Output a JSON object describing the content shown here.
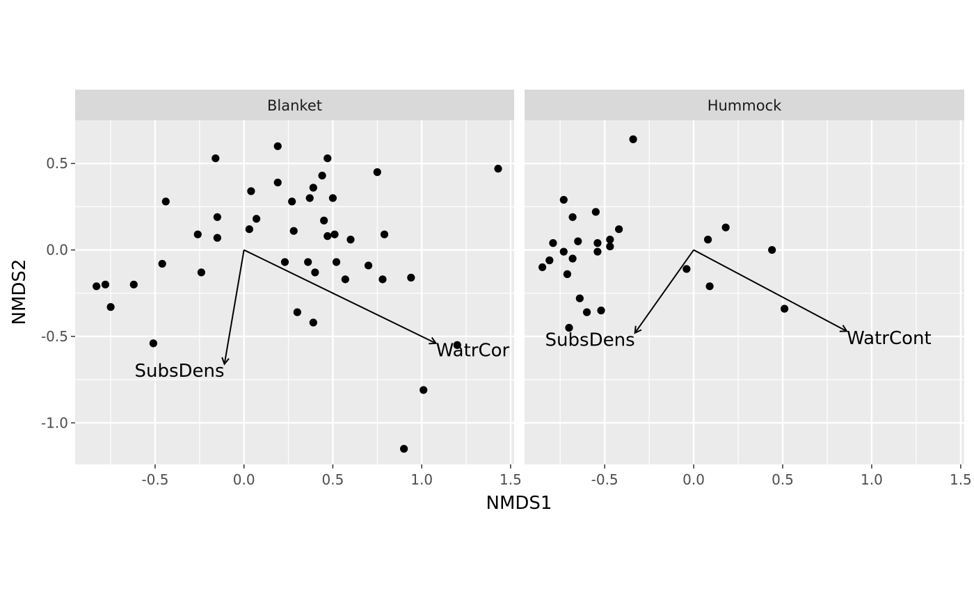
{
  "chart_data": {
    "type": "scatter",
    "xlabel": "NMDS1",
    "ylabel": "NMDS2",
    "xlim": [
      -0.95,
      1.52
    ],
    "ylim": [
      -1.24,
      0.75
    ],
    "x_ticks": [
      -0.5,
      0.0,
      0.5,
      1.0,
      1.5
    ],
    "x_tick_labels": [
      "-0.5",
      "0.0",
      "0.5",
      "1.0",
      "1.5"
    ],
    "y_ticks": [
      0.5,
      0.0,
      -0.5,
      -1.0
    ],
    "y_tick_labels": [
      "0.5",
      "0.0",
      "-0.5",
      "-1.0"
    ],
    "grid": true,
    "panels": [
      {
        "strip": "Blanket",
        "points": [
          [
            -0.83,
            -0.21
          ],
          [
            -0.78,
            -0.2
          ],
          [
            -0.75,
            -0.33
          ],
          [
            -0.62,
            -0.2
          ],
          [
            -0.51,
            -0.54
          ],
          [
            -0.46,
            -0.08
          ],
          [
            -0.44,
            0.28
          ],
          [
            -0.26,
            0.09
          ],
          [
            -0.24,
            -0.13
          ],
          [
            -0.16,
            0.53
          ],
          [
            -0.15,
            0.19
          ],
          [
            -0.15,
            0.07
          ],
          [
            0.03,
            0.12
          ],
          [
            0.04,
            0.34
          ],
          [
            0.07,
            0.18
          ],
          [
            0.19,
            0.6
          ],
          [
            0.19,
            0.39
          ],
          [
            0.23,
            -0.07
          ],
          [
            0.27,
            0.28
          ],
          [
            0.28,
            0.11
          ],
          [
            0.3,
            -0.36
          ],
          [
            0.36,
            -0.07
          ],
          [
            0.37,
            0.3
          ],
          [
            0.39,
            0.36
          ],
          [
            0.39,
            -0.42
          ],
          [
            0.4,
            -0.13
          ],
          [
            0.44,
            0.43
          ],
          [
            0.45,
            0.17
          ],
          [
            0.47,
            0.53
          ],
          [
            0.47,
            0.08
          ],
          [
            0.5,
            0.3
          ],
          [
            0.51,
            0.09
          ],
          [
            0.52,
            -0.07
          ],
          [
            0.57,
            -0.17
          ],
          [
            0.6,
            0.06
          ],
          [
            0.7,
            -0.09
          ],
          [
            0.75,
            0.45
          ],
          [
            0.78,
            -0.17
          ],
          [
            0.79,
            0.09
          ],
          [
            0.94,
            -0.16
          ],
          [
            0.9,
            -1.15
          ],
          [
            1.01,
            -0.81
          ],
          [
            1.2,
            -0.55
          ],
          [
            1.43,
            0.47
          ]
        ],
        "arrows": [
          {
            "label": "SubsDens",
            "x": -0.11,
            "y": -0.66
          },
          {
            "label": "WatrCor",
            "x": 1.08,
            "y": -0.54
          }
        ]
      },
      {
        "strip": "Hummock",
        "points": [
          [
            -0.85,
            -0.1
          ],
          [
            -0.81,
            -0.06
          ],
          [
            -0.79,
            0.04
          ],
          [
            -0.73,
            0.29
          ],
          [
            -0.73,
            -0.01
          ],
          [
            -0.71,
            -0.14
          ],
          [
            -0.7,
            -0.45
          ],
          [
            -0.68,
            0.19
          ],
          [
            -0.68,
            -0.05
          ],
          [
            -0.65,
            0.05
          ],
          [
            -0.64,
            -0.28
          ],
          [
            -0.6,
            -0.36
          ],
          [
            -0.55,
            0.22
          ],
          [
            -0.54,
            0.04
          ],
          [
            -0.54,
            -0.01
          ],
          [
            -0.52,
            -0.35
          ],
          [
            -0.47,
            0.06
          ],
          [
            -0.47,
            0.02
          ],
          [
            -0.42,
            0.12
          ],
          [
            -0.34,
            0.64
          ],
          [
            -0.04,
            -0.11
          ],
          [
            0.08,
            0.06
          ],
          [
            0.09,
            -0.21
          ],
          [
            0.18,
            0.13
          ],
          [
            0.44,
            0.0
          ],
          [
            0.51,
            -0.34
          ]
        ],
        "arrows": [
          {
            "label": "SubsDens",
            "x": -0.33,
            "y": -0.48
          },
          {
            "label": "WatrCont",
            "x": 0.86,
            "y": -0.47
          }
        ]
      }
    ]
  }
}
